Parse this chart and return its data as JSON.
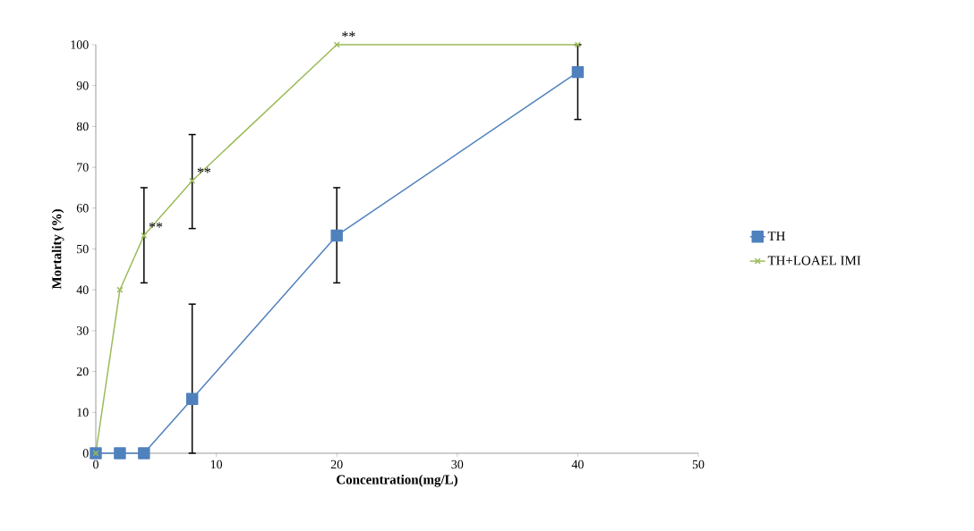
{
  "chart_data": {
    "type": "line",
    "xlabel": "Concentration(mg/L)",
    "ylabel": "Mortality (%)",
    "xlim": [
      0,
      50
    ],
    "xticks": [
      0,
      10,
      20,
      30,
      40,
      50
    ],
    "ylim": [
      0,
      100
    ],
    "yticks": [
      0,
      10,
      20,
      30,
      40,
      50,
      60,
      70,
      80,
      90,
      100
    ],
    "grid": false,
    "legend": "right",
    "line_style": "solid",
    "series": [
      {
        "name": "TH",
        "color": "#4f81bd",
        "marker": "square",
        "x": [
          0,
          2,
          4,
          8,
          20,
          40
        ],
        "values": [
          0,
          0,
          0,
          13.3,
          53.3,
          93.3
        ],
        "errors": [
          null,
          null,
          null,
          [
            0,
            36.5
          ],
          [
            41.7,
            65
          ],
          [
            81.7,
            100
          ]
        ]
      },
      {
        "name": "TH+LOAEL IMI",
        "color": "#9bbb59",
        "marker": "cross",
        "x": [
          0,
          2,
          4,
          8,
          20,
          40
        ],
        "values": [
          0,
          40,
          53.3,
          66.7,
          100,
          100
        ],
        "errors": [
          null,
          null,
          [
            41.7,
            65
          ],
          [
            55,
            78
          ],
          null,
          null
        ]
      }
    ],
    "annotations": [
      {
        "text": "**",
        "x": 4,
        "y": 53.3
      },
      {
        "text": "**",
        "x": 8,
        "y": 66.7
      },
      {
        "text": "**",
        "x": 20,
        "y": 100
      }
    ]
  }
}
